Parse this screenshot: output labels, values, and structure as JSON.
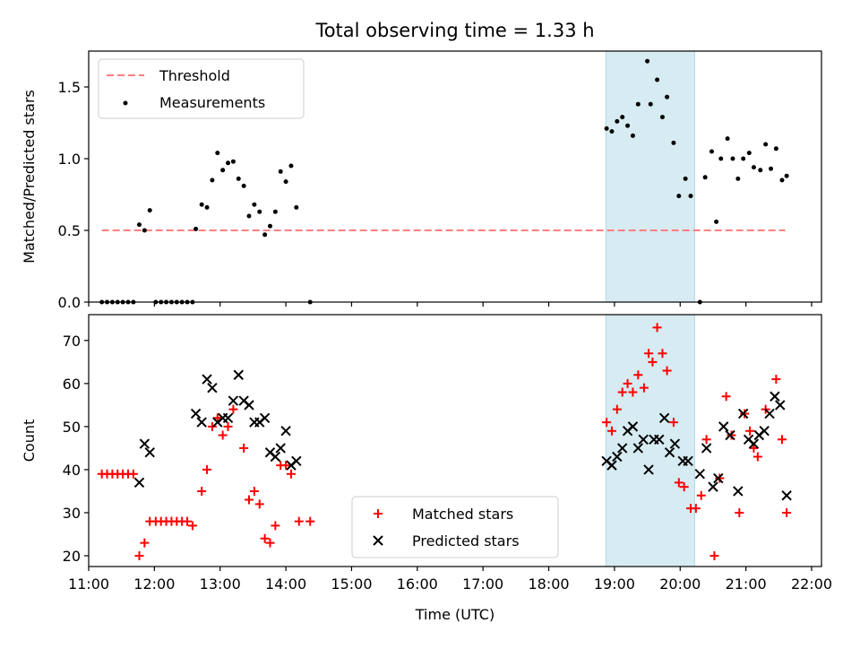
{
  "title": "Total observing time = 1.33 h",
  "chart_data": [
    {
      "type": "scatter",
      "panel": "top",
      "ylabel": "Matched/Predicted stars",
      "ylim": [
        0,
        1.75
      ],
      "yticks": [
        0.0,
        0.5,
        1.0,
        1.5
      ],
      "ytick_labels": [
        "0.0",
        "0.5",
        "1.0",
        "1.5"
      ],
      "xlim_hours": [
        11.0,
        22.15
      ],
      "shaded_span_hours": [
        18.87,
        20.22
      ],
      "threshold": {
        "name": "Threshold",
        "y": 0.5,
        "x_range_hours": [
          11.2,
          21.6
        ],
        "color": "#ff7f7f"
      },
      "legend": {
        "position": "upper-left",
        "entries": [
          "Threshold",
          "Measurements"
        ]
      },
      "series": [
        {
          "name": "Measurements",
          "color": "#000000",
          "points": [
            [
              11.2,
              0
            ],
            [
              11.28,
              0
            ],
            [
              11.36,
              0
            ],
            [
              11.44,
              0
            ],
            [
              11.52,
              0
            ],
            [
              11.6,
              0
            ],
            [
              11.68,
              0
            ],
            [
              11.77,
              0.54
            ],
            [
              11.85,
              0.5
            ],
            [
              11.93,
              0.64
            ],
            [
              12.02,
              0
            ],
            [
              12.1,
              0
            ],
            [
              12.18,
              0
            ],
            [
              12.26,
              0
            ],
            [
              12.34,
              0
            ],
            [
              12.42,
              0
            ],
            [
              12.5,
              0
            ],
            [
              12.58,
              0
            ],
            [
              12.63,
              0.51
            ],
            [
              12.72,
              0.68
            ],
            [
              12.8,
              0.66
            ],
            [
              12.88,
              0.85
            ],
            [
              12.96,
              1.04
            ],
            [
              13.04,
              0.92
            ],
            [
              13.12,
              0.97
            ],
            [
              13.2,
              0.98
            ],
            [
              13.28,
              0.86
            ],
            [
              13.36,
              0.81
            ],
            [
              13.44,
              0.6
            ],
            [
              13.52,
              0.68
            ],
            [
              13.6,
              0.63
            ],
            [
              13.68,
              0.47
            ],
            [
              13.76,
              0.53
            ],
            [
              13.84,
              0.63
            ],
            [
              13.92,
              0.91
            ],
            [
              14.0,
              0.84
            ],
            [
              14.08,
              0.95
            ],
            [
              14.16,
              0.66
            ],
            [
              14.37,
              0
            ],
            [
              18.88,
              1.21
            ],
            [
              18.96,
              1.19
            ],
            [
              19.04,
              1.26
            ],
            [
              19.12,
              1.29
            ],
            [
              19.2,
              1.23
            ],
            [
              19.28,
              1.16
            ],
            [
              19.36,
              1.38
            ],
            [
              19.5,
              1.68
            ],
            [
              19.55,
              1.38
            ],
            [
              19.65,
              1.55
            ],
            [
              19.73,
              1.29
            ],
            [
              19.8,
              1.43
            ],
            [
              19.9,
              1.11
            ],
            [
              19.98,
              0.74
            ],
            [
              20.08,
              0.86
            ],
            [
              20.16,
              0.74
            ],
            [
              20.3,
              0
            ],
            [
              20.38,
              0.87
            ],
            [
              20.48,
              1.05
            ],
            [
              20.55,
              0.56
            ],
            [
              20.62,
              1.0
            ],
            [
              20.72,
              1.14
            ],
            [
              20.8,
              1.0
            ],
            [
              20.88,
              0.86
            ],
            [
              20.96,
              1.0
            ],
            [
              21.05,
              1.04
            ],
            [
              21.12,
              0.94
            ],
            [
              21.22,
              0.92
            ],
            [
              21.3,
              1.1
            ],
            [
              21.38,
              0.93
            ],
            [
              21.46,
              1.07
            ],
            [
              21.55,
              0.85
            ],
            [
              21.62,
              0.88
            ]
          ]
        }
      ]
    },
    {
      "type": "scatter",
      "panel": "bottom",
      "xlabel": "Time (UTC)",
      "ylabel": "Count",
      "ylim": [
        17.5,
        76
      ],
      "yticks": [
        20,
        30,
        40,
        50,
        60,
        70
      ],
      "ytick_labels": [
        "20",
        "30",
        "40",
        "50",
        "60",
        "70"
      ],
      "xlim_hours": [
        11.0,
        22.15
      ],
      "xticks_hours": [
        11,
        12,
        13,
        14,
        15,
        16,
        17,
        18,
        19,
        20,
        21,
        22
      ],
      "xtick_labels": [
        "11:00",
        "12:00",
        "13:00",
        "14:00",
        "15:00",
        "16:00",
        "17:00",
        "18:00",
        "19:00",
        "20:00",
        "21:00",
        "22:00"
      ],
      "shaded_span_hours": [
        18.87,
        20.22
      ],
      "legend": {
        "position": "lower-center",
        "entries": [
          "Matched stars",
          "Predicted stars"
        ]
      },
      "series": [
        {
          "name": "Matched stars",
          "marker": "plus",
          "color": "#ff0000",
          "points": [
            [
              11.2,
              39
            ],
            [
              11.28,
              39
            ],
            [
              11.36,
              39
            ],
            [
              11.44,
              39
            ],
            [
              11.52,
              39
            ],
            [
              11.6,
              39
            ],
            [
              11.68,
              39
            ],
            [
              11.77,
              20
            ],
            [
              11.85,
              23
            ],
            [
              11.93,
              28
            ],
            [
              12.02,
              28
            ],
            [
              12.1,
              28
            ],
            [
              12.18,
              28
            ],
            [
              12.26,
              28
            ],
            [
              12.34,
              28
            ],
            [
              12.42,
              28
            ],
            [
              12.5,
              28
            ],
            [
              12.58,
              27
            ],
            [
              12.72,
              35
            ],
            [
              12.8,
              40
            ],
            [
              12.88,
              50
            ],
            [
              12.96,
              52
            ],
            [
              13.04,
              48
            ],
            [
              13.12,
              50
            ],
            [
              13.2,
              54
            ],
            [
              13.36,
              45
            ],
            [
              13.44,
              33
            ],
            [
              13.52,
              35
            ],
            [
              13.6,
              32
            ],
            [
              13.68,
              24
            ],
            [
              13.76,
              23
            ],
            [
              13.84,
              27
            ],
            [
              13.92,
              41
            ],
            [
              14.0,
              41
            ],
            [
              14.08,
              39
            ],
            [
              14.2,
              28
            ],
            [
              14.37,
              28
            ],
            [
              18.88,
              51
            ],
            [
              18.96,
              49
            ],
            [
              19.04,
              54
            ],
            [
              19.12,
              58
            ],
            [
              19.2,
              60
            ],
            [
              19.28,
              58
            ],
            [
              19.36,
              62
            ],
            [
              19.45,
              59
            ],
            [
              19.52,
              67
            ],
            [
              19.58,
              65
            ],
            [
              19.65,
              73
            ],
            [
              19.73,
              67
            ],
            [
              19.8,
              63
            ],
            [
              19.9,
              51
            ],
            [
              19.98,
              37
            ],
            [
              20.06,
              36
            ],
            [
              20.16,
              31
            ],
            [
              20.24,
              31
            ],
            [
              20.32,
              34
            ],
            [
              20.4,
              47
            ],
            [
              20.52,
              20
            ],
            [
              20.6,
              38
            ],
            [
              20.7,
              57
            ],
            [
              20.78,
              48
            ],
            [
              20.9,
              30
            ],
            [
              20.98,
              53
            ],
            [
              21.06,
              49
            ],
            [
              21.12,
              45
            ],
            [
              21.18,
              43
            ],
            [
              21.3,
              54
            ],
            [
              21.46,
              61
            ],
            [
              21.55,
              47
            ],
            [
              21.62,
              30
            ]
          ]
        },
        {
          "name": "Predicted stars",
          "marker": "x",
          "color": "#000000",
          "points": [
            [
              11.77,
              37
            ],
            [
              11.85,
              46
            ],
            [
              11.93,
              44
            ],
            [
              12.63,
              53
            ],
            [
              12.72,
              51
            ],
            [
              12.8,
              61
            ],
            [
              12.88,
              59
            ],
            [
              12.96,
              51
            ],
            [
              13.04,
              52
            ],
            [
              13.12,
              52
            ],
            [
              13.2,
              56
            ],
            [
              13.28,
              62
            ],
            [
              13.36,
              56
            ],
            [
              13.44,
              55
            ],
            [
              13.52,
              51
            ],
            [
              13.6,
              51
            ],
            [
              13.68,
              52
            ],
            [
              13.76,
              44
            ],
            [
              13.84,
              43
            ],
            [
              13.92,
              45
            ],
            [
              14.0,
              49
            ],
            [
              14.08,
              41
            ],
            [
              14.16,
              42
            ],
            [
              18.88,
              42
            ],
            [
              18.96,
              41
            ],
            [
              19.04,
              43
            ],
            [
              19.12,
              45
            ],
            [
              19.2,
              49
            ],
            [
              19.28,
              50
            ],
            [
              19.36,
              45
            ],
            [
              19.44,
              47
            ],
            [
              19.52,
              40
            ],
            [
              19.6,
              47
            ],
            [
              19.68,
              47
            ],
            [
              19.76,
              52
            ],
            [
              19.84,
              44
            ],
            [
              19.92,
              46
            ],
            [
              20.04,
              42
            ],
            [
              20.12,
              42
            ],
            [
              20.3,
              39
            ],
            [
              20.4,
              45
            ],
            [
              20.5,
              36
            ],
            [
              20.58,
              38
            ],
            [
              20.66,
              50
            ],
            [
              20.76,
              48
            ],
            [
              20.88,
              35
            ],
            [
              20.96,
              53
            ],
            [
              21.04,
              47
            ],
            [
              21.12,
              46
            ],
            [
              21.2,
              48
            ],
            [
              21.28,
              49
            ],
            [
              21.36,
              53
            ],
            [
              21.44,
              57
            ],
            [
              21.52,
              55
            ],
            [
              21.62,
              34
            ]
          ]
        }
      ]
    }
  ]
}
